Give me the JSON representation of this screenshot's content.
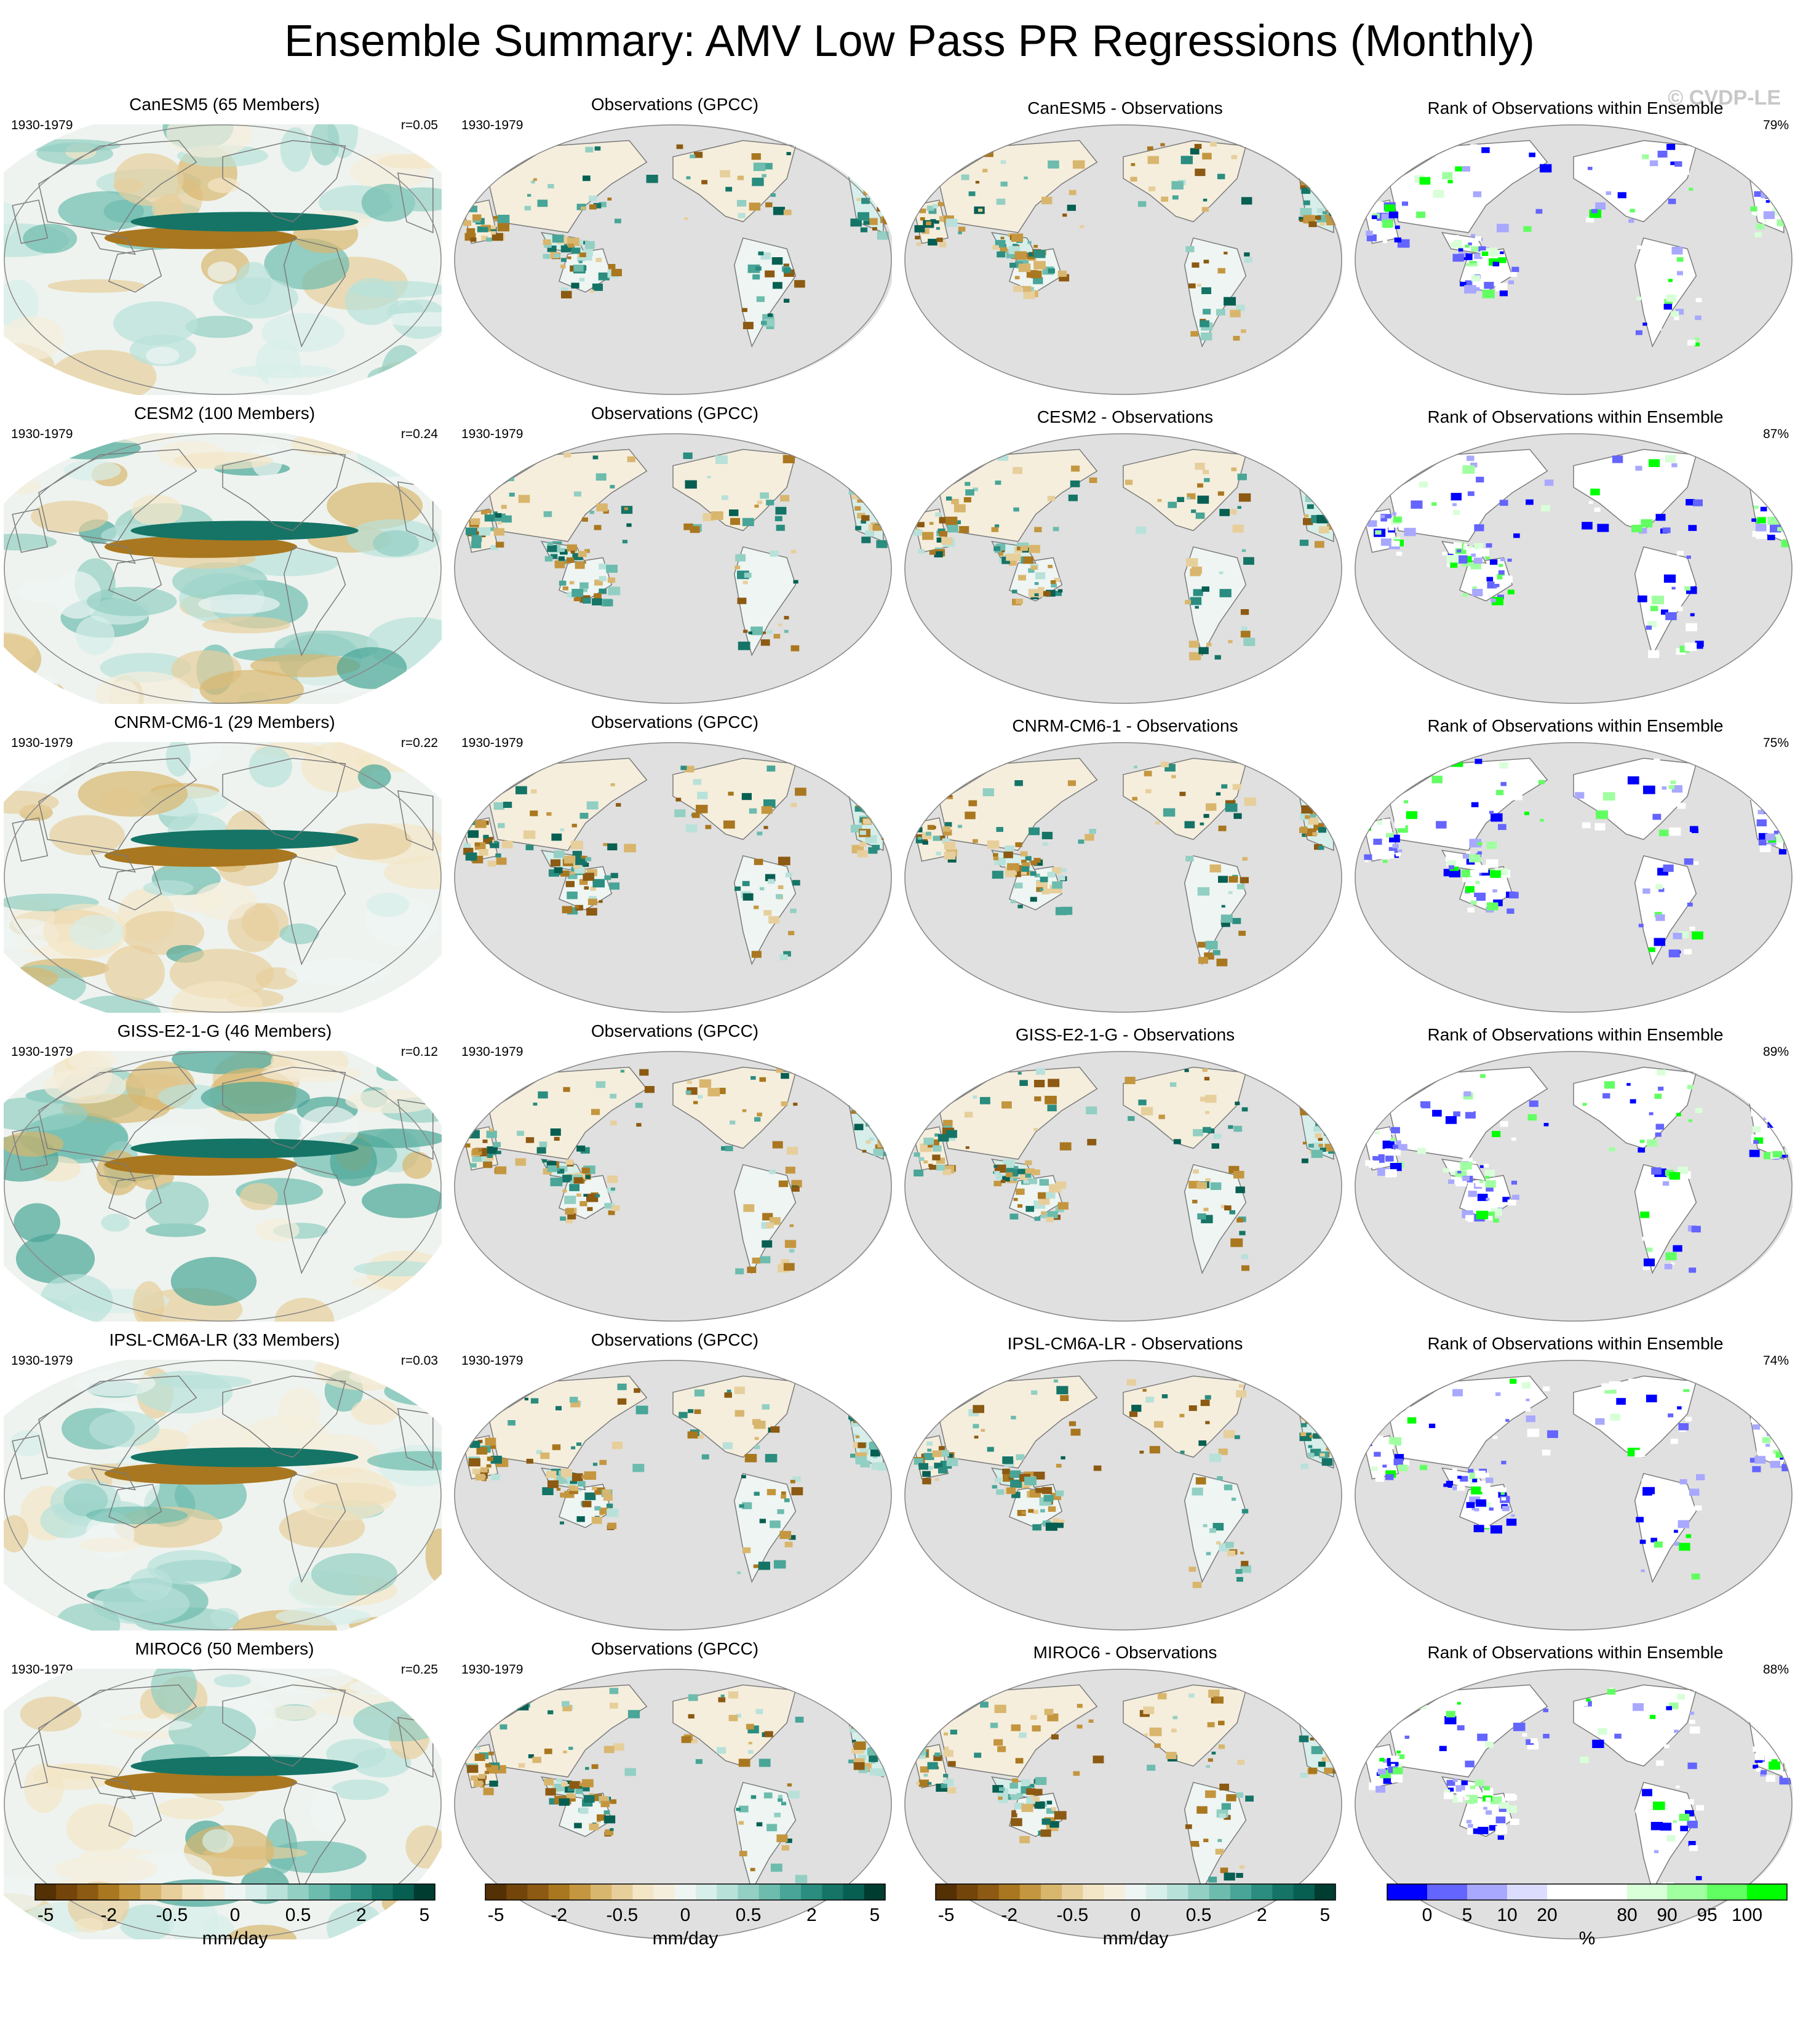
{
  "title": "Ensemble Summary: AMV Low Pass PR Regressions (Monthly)",
  "watermark": "© CVDP-LE",
  "colors": {
    "brown_green": [
      "#543005",
      "#74450a",
      "#8c5a12",
      "#a9771f",
      "#c4963f",
      "#d9b66e",
      "#e7cf9c",
      "#f3e6c6",
      "#f5eedd",
      "#eef5f3",
      "#d7eeea",
      "#b8e1da",
      "#93cfc3",
      "#6dbcae",
      "#48a597",
      "#2a8d7f",
      "#157466",
      "#075f52",
      "#003c30"
    ],
    "rank": [
      "#0000ff",
      "#6464ff",
      "#a8a8ff",
      "#dcdcff",
      "#ffffff",
      "#ffffff",
      "#d8ffd8",
      "#a0ffa0",
      "#62ff62",
      "#00ff00"
    ],
    "land_mask": "#e0e0e0",
    "coast": "#7a7a7a"
  },
  "rows": [
    {
      "model": "CanESM5 (65 Members)",
      "period": "1930-1979",
      "r": "r=0.05",
      "obs_title": "Observations (GPCC)",
      "obs_period": "1930-1979",
      "diff_title": "CanESM5 - Observations",
      "rank_title": "Rank of Observations within Ensemble",
      "rank_pct": "79%"
    },
    {
      "model": "CESM2 (100 Members)",
      "period": "1930-1979",
      "r": "r=0.24",
      "obs_title": "Observations (GPCC)",
      "obs_period": "1930-1979",
      "diff_title": "CESM2 - Observations",
      "rank_title": "Rank of Observations within Ensemble",
      "rank_pct": "87%"
    },
    {
      "model": "CNRM-CM6-1 (29 Members)",
      "period": "1930-1979",
      "r": "r=0.22",
      "obs_title": "Observations (GPCC)",
      "obs_period": "1930-1979",
      "diff_title": "CNRM-CM6-1 - Observations",
      "rank_title": "Rank of Observations within Ensemble",
      "rank_pct": "75%"
    },
    {
      "model": "GISS-E2-1-G (46 Members)",
      "period": "1930-1979",
      "r": "r=0.12",
      "obs_title": "Observations (GPCC)",
      "obs_period": "1930-1979",
      "diff_title": "GISS-E2-1-G - Observations",
      "rank_title": "Rank of Observations within Ensemble",
      "rank_pct": "89%"
    },
    {
      "model": "IPSL-CM6A-LR (33 Members)",
      "period": "1930-1979",
      "r": "r=0.03",
      "obs_title": "Observations (GPCC)",
      "obs_period": "1930-1979",
      "diff_title": "IPSL-CM6A-LR - Observations",
      "rank_title": "Rank of Observations within Ensemble",
      "rank_pct": "74%"
    },
    {
      "model": "MIROC6 (50 Members)",
      "period": "1930-1979",
      "r": "r=0.25",
      "obs_title": "Observations (GPCC)",
      "obs_period": "1930-1979",
      "diff_title": "MIROC6 - Observations",
      "rank_title": "Rank of Observations within Ensemble",
      "rank_pct": "88%"
    }
  ],
  "chart_data": [
    {
      "type": "colorbar",
      "name": "model",
      "ticks": [
        "-5",
        "-2",
        "-0.5",
        "0",
        "0.5",
        "2",
        "5"
      ],
      "label": "mm/day"
    },
    {
      "type": "colorbar",
      "name": "obs",
      "ticks": [
        "-5",
        "-2",
        "-0.5",
        "0",
        "0.5",
        "2",
        "5"
      ],
      "label": "mm/day"
    },
    {
      "type": "colorbar",
      "name": "diff",
      "ticks": [
        "-5",
        "-2",
        "-0.5",
        "0",
        "0.5",
        "2",
        "5"
      ],
      "label": "mm/day"
    },
    {
      "type": "colorbar",
      "name": "rank",
      "ticks": [
        "0",
        "5",
        "10",
        "20",
        "80",
        "90",
        "95",
        "100"
      ],
      "label": "%"
    }
  ]
}
